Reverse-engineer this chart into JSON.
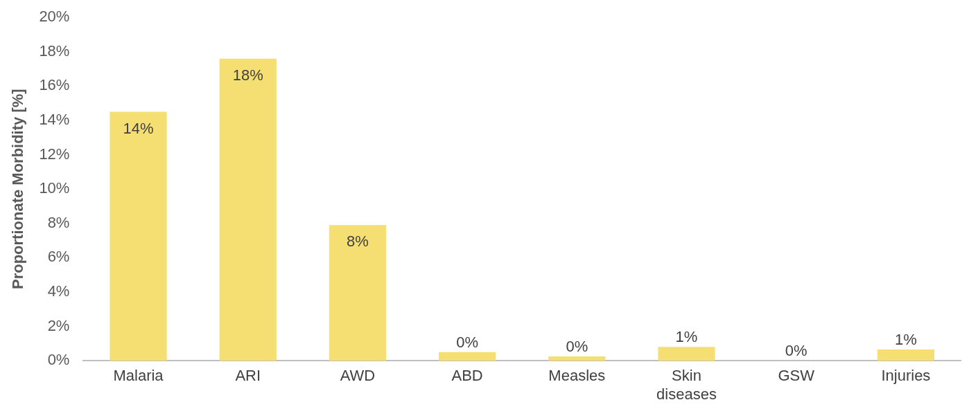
{
  "chart_data": {
    "type": "bar",
    "ylabel": "Proportionate Morbidity [%]",
    "categories": [
      "Malaria",
      "ARI",
      "AWD",
      "ABD",
      "Measles",
      "Skin diseases",
      "GSW",
      "Injuries"
    ],
    "values": [
      14.5,
      17.6,
      7.9,
      0.5,
      0.25,
      0.8,
      0,
      0.65
    ],
    "value_labels": [
      "14%",
      "18%",
      "8%",
      "0%",
      "0%",
      "1%",
      "0%",
      "1%"
    ],
    "color": "#f6df72",
    "ylim": [
      0,
      20
    ],
    "yticks": [
      {
        "value": 0,
        "label": "0%"
      },
      {
        "value": 2,
        "label": "2%"
      },
      {
        "value": 4,
        "label": "4%"
      },
      {
        "value": 6,
        "label": "6%"
      },
      {
        "value": 8,
        "label": "8%"
      },
      {
        "value": 10,
        "label": "10%"
      },
      {
        "value": 12,
        "label": "12%"
      },
      {
        "value": 14,
        "label": "14%"
      },
      {
        "value": 16,
        "label": "16%"
      },
      {
        "value": 18,
        "label": "18%"
      },
      {
        "value": 20,
        "label": "20%"
      }
    ],
    "grid": false,
    "legend": false
  }
}
